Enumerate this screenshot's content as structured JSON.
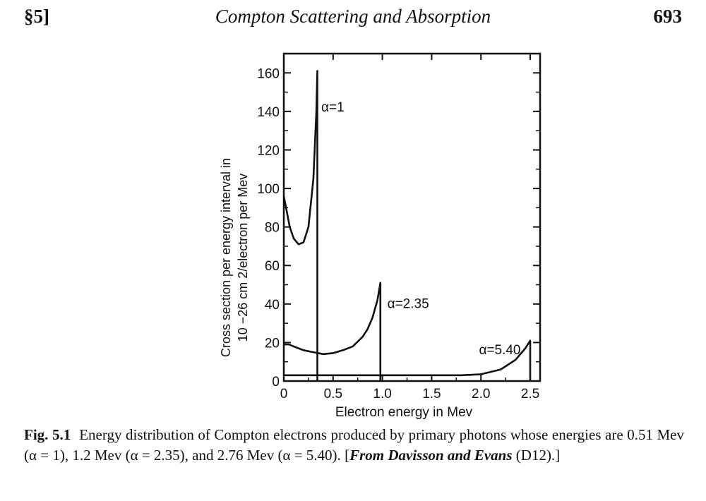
{
  "header": {
    "section": "§5]",
    "title": "Compton Scattering and Absorption",
    "page_number": "693"
  },
  "chart_data": {
    "type": "line",
    "title": "",
    "xlabel": "Electron energy in Mev",
    "ylabel_line1": "Cross section per energy interval in",
    "ylabel_line2": "10 −26 cm 2/electron per Mev",
    "xlim": [
      0,
      2.6
    ],
    "ylim": [
      0,
      170
    ],
    "x_ticks": [
      0,
      0.5,
      1.0,
      1.5,
      2.0,
      2.5
    ],
    "x_tick_labels": [
      "0",
      "0.5",
      "1.0",
      "1.5",
      "2.0",
      "2.5"
    ],
    "y_ticks": [
      0,
      20,
      40,
      60,
      80,
      100,
      120,
      140,
      160
    ],
    "y_tick_labels": [
      "0",
      "20",
      "40",
      "60",
      "80",
      "100",
      "120",
      "140",
      "160"
    ],
    "grid": false,
    "series": [
      {
        "name": "α=1",
        "label_at": [
          0.38,
          140
        ],
        "x": [
          0.0,
          0.03,
          0.06,
          0.1,
          0.15,
          0.2,
          0.25,
          0.3,
          0.33,
          0.34,
          0.34
        ],
        "y": [
          96,
          88,
          80,
          74,
          71,
          72,
          80,
          105,
          140,
          161,
          0
        ]
      },
      {
        "name": "α=2.35",
        "label_at": [
          1.05,
          38
        ],
        "x": [
          0.0,
          0.05,
          0.1,
          0.2,
          0.3,
          0.4,
          0.5,
          0.6,
          0.7,
          0.8,
          0.85,
          0.9,
          0.95,
          0.98,
          0.98
        ],
        "y": [
          19,
          19,
          18,
          16,
          15,
          14,
          14.5,
          16,
          18,
          23,
          27,
          33,
          42,
          51,
          0
        ]
      },
      {
        "name": "α=5.40",
        "label_at": [
          1.98,
          14
        ],
        "x": [
          0.0,
          0.3,
          0.6,
          0.9,
          1.2,
          1.5,
          1.8,
          2.0,
          2.2,
          2.35,
          2.45,
          2.5,
          2.5
        ],
        "y": [
          3,
          3,
          3,
          3,
          3,
          3,
          3,
          3.5,
          6,
          11,
          17,
          21,
          0
        ]
      }
    ]
  },
  "caption": {
    "label": "Fig. 5.1",
    "text": "Energy distribution of Compton electrons produced by primary photons whose energies are 0.51 Mev (α = 1), 1.2 Mev (α = 2.35), and 2.76 Mev (α = 5.40).",
    "source_prefix": "[",
    "source_name": "From Davisson and Evans",
    "source_suffix": " (D12).]"
  }
}
